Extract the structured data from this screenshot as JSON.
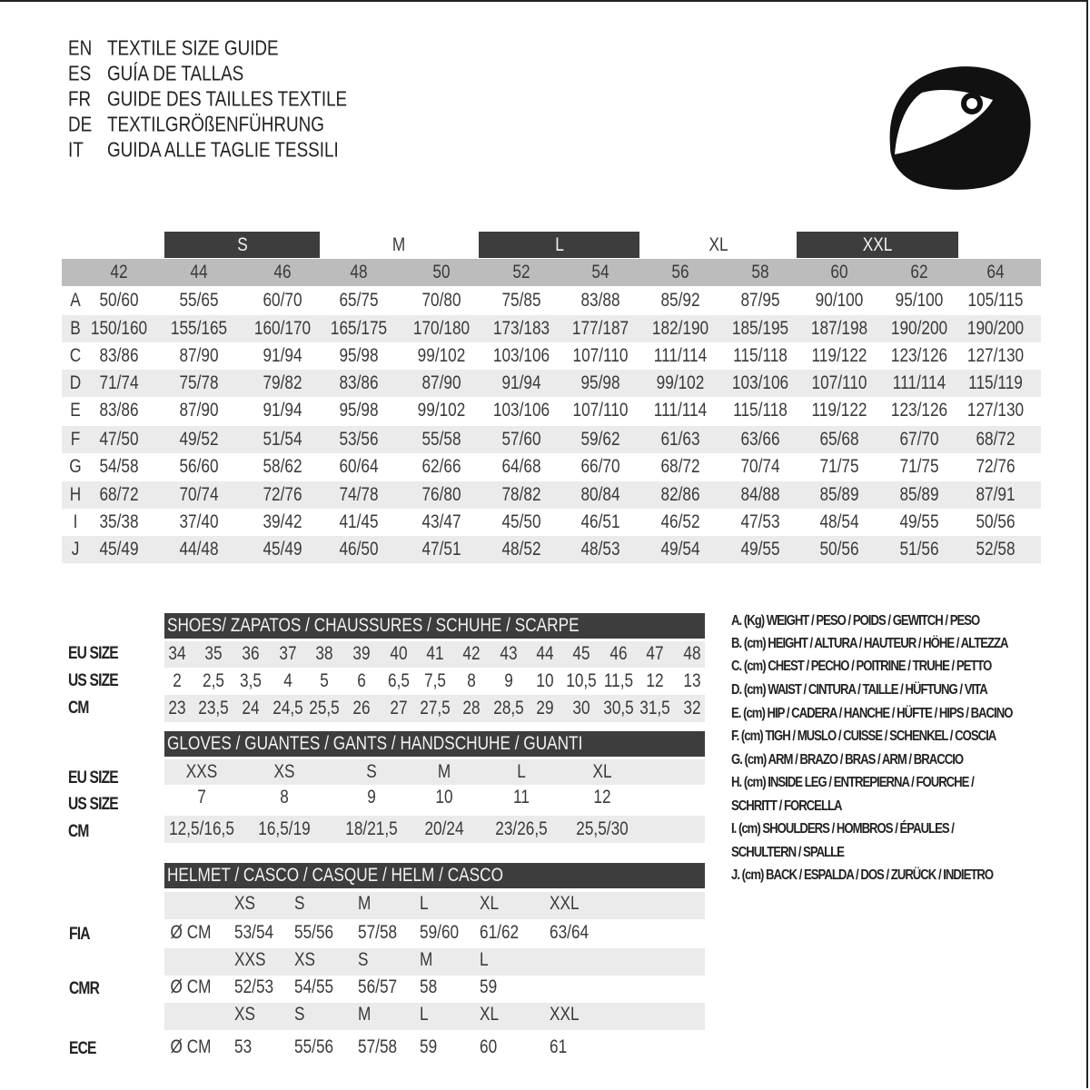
{
  "titles": [
    {
      "lang": "EN",
      "text": "TEXTILE SIZE GUIDE"
    },
    {
      "lang": "ES",
      "text": "GUÍA DE TALLAS"
    },
    {
      "lang": "FR",
      "text": "GUIDE DES TAILLES TEXTILE"
    },
    {
      "lang": "DE",
      "text": "TEXTILGRÖßENFÜHRUNG"
    },
    {
      "lang": "IT",
      "text": "GUIDA ALLE TAGLIE TESSILI"
    }
  ],
  "icon": "helmet-icon",
  "colors": {
    "dark_bar": "#3d3d3d",
    "header_gray": "#bcbcbc",
    "stripe_gray": "#ebebeb"
  },
  "textile": {
    "size_groups": [
      "S",
      "M",
      "L",
      "XL",
      "XXL"
    ],
    "eu_sizes": [
      "42",
      "44",
      "46",
      "48",
      "50",
      "52",
      "54",
      "56",
      "58",
      "60",
      "62",
      "64"
    ],
    "rows": [
      {
        "key": "A",
        "values": [
          "50/60",
          "55/65",
          "60/70",
          "65/75",
          "70/80",
          "75/85",
          "83/88",
          "85/92",
          "87/95",
          "90/100",
          "95/100",
          "105/115"
        ]
      },
      {
        "key": "B",
        "values": [
          "150/160",
          "155/165",
          "160/170",
          "165/175",
          "170/180",
          "173/183",
          "177/187",
          "182/190",
          "185/195",
          "187/198",
          "190/200",
          "190/200"
        ]
      },
      {
        "key": "C",
        "values": [
          "83/86",
          "87/90",
          "91/94",
          "95/98",
          "99/102",
          "103/106",
          "107/110",
          "111/114",
          "115/118",
          "119/122",
          "123/126",
          "127/130"
        ]
      },
      {
        "key": "D",
        "values": [
          "71/74",
          "75/78",
          "79/82",
          "83/86",
          "87/90",
          "91/94",
          "95/98",
          "99/102",
          "103/106",
          "107/110",
          "111/114",
          "115/119"
        ]
      },
      {
        "key": "E",
        "values": [
          "83/86",
          "87/90",
          "91/94",
          "95/98",
          "99/102",
          "103/106",
          "107/110",
          "111/114",
          "115/118",
          "119/122",
          "123/126",
          "127/130"
        ]
      },
      {
        "key": "F",
        "values": [
          "47/50",
          "49/52",
          "51/54",
          "53/56",
          "55/58",
          "57/60",
          "59/62",
          "61/63",
          "63/66",
          "65/68",
          "67/70",
          "68/72"
        ]
      },
      {
        "key": "G",
        "values": [
          "54/58",
          "56/60",
          "58/62",
          "60/64",
          "62/66",
          "64/68",
          "66/70",
          "68/72",
          "70/74",
          "71/75",
          "71/75",
          "72/76"
        ]
      },
      {
        "key": "H",
        "values": [
          "68/72",
          "70/74",
          "72/76",
          "74/78",
          "76/80",
          "78/82",
          "80/84",
          "82/86",
          "84/88",
          "85/89",
          "85/89",
          "87/91"
        ]
      },
      {
        "key": "I",
        "values": [
          "35/38",
          "37/40",
          "39/42",
          "41/45",
          "43/47",
          "45/50",
          "46/51",
          "46/52",
          "47/53",
          "48/54",
          "49/55",
          "50/56"
        ]
      },
      {
        "key": "J",
        "values": [
          "45/49",
          "44/48",
          "45/49",
          "46/50",
          "47/51",
          "48/52",
          "48/53",
          "49/54",
          "49/55",
          "50/56",
          "51/56",
          "52/58"
        ]
      }
    ]
  },
  "shoes": {
    "title": "SHOES/ ZAPATOS / CHAUSSURES / SCHUHE / SCARPE",
    "row_labels": [
      "EU SIZE",
      "US SIZE",
      "CM"
    ],
    "eu": [
      "34",
      "35",
      "36",
      "37",
      "38",
      "39",
      "40",
      "41",
      "42",
      "43",
      "44",
      "45",
      "46",
      "47",
      "48"
    ],
    "us": [
      "2",
      "2,5",
      "3,5",
      "4",
      "5",
      "6",
      "6,5",
      "7,5",
      "8",
      "9",
      "10",
      "10,5",
      "11,5",
      "12",
      "13"
    ],
    "cm": [
      "23",
      "23,5",
      "24",
      "24,5",
      "25,5",
      "26",
      "27",
      "27,5",
      "28",
      "28,5",
      "29",
      "30",
      "30,5",
      "31,5",
      "32"
    ]
  },
  "gloves": {
    "title": "GLOVES / GUANTES / GANTS / HANDSCHUHE / GUANTI",
    "row_labels": [
      "EU SIZE",
      "US SIZE",
      "CM"
    ],
    "eu": [
      "XXS",
      "XS",
      "S",
      "M",
      "L",
      "XL"
    ],
    "us": [
      "7",
      "8",
      "9",
      "10",
      "11",
      "12"
    ],
    "cm": [
      "12,5/16,5",
      "16,5/19",
      "18/21,5",
      "20/24",
      "23/26,5",
      "25,5/30"
    ]
  },
  "helmet": {
    "title": "HELMET / CASCO / CASQUE / HELM / CASCO",
    "unit": "Ø CM",
    "standards": [
      {
        "name": "FIA",
        "sizes": [
          "XS",
          "S",
          "M",
          "L",
          "XL",
          "XXL"
        ],
        "values": [
          "53/54",
          "55/56",
          "57/58",
          "59/60",
          "61/62",
          "63/64"
        ]
      },
      {
        "name": "CMR",
        "sizes": [
          "XXS",
          "XS",
          "S",
          "M",
          "L"
        ],
        "values": [
          "52/53",
          "54/55",
          "56/57",
          "58",
          "59"
        ]
      },
      {
        "name": "ECE",
        "sizes": [
          "XS",
          "S",
          "M",
          "L",
          "XL",
          "XXL"
        ],
        "values": [
          "53",
          "55/56",
          "57/58",
          "59",
          "60",
          "61"
        ]
      }
    ]
  },
  "legend": [
    "A. (Kg) WEIGHT / PESO / POIDS / GEWITCH / PESO",
    "B. (cm) HEIGHT / ALTURA / HAUTEUR / HÖHE / ALTEZZA",
    "C. (cm) CHEST / PECHO / POITRINE / TRUHE / PETTO",
    "D. (cm) WAIST / CINTURA / TAILLE / HÜFTUNG / VITA",
    "E. (cm) HIP / CADERA / HANCHE / HÜFTE / HIPS /  BACINO",
    "F.  (cm) TIGH / MUSLO / CUISSE / SCHENKEL / COSCIA",
    "G. (cm) ARM  / BRAZO / BRAS / ARM / BRACCIO",
    "H. (cm) INSIDE LEG / ENTREPIERNA / FOURCHE /",
    "SCHRITT / FORCELLA",
    "I.  (cm) SHOULDERS / HOMBROS / ÉPAULES /",
    "SCHULTERN / SPALLE",
    "J. (cm) BACK / ESPALDA / DOS / ZURÜCK / INDIETRO"
  ]
}
